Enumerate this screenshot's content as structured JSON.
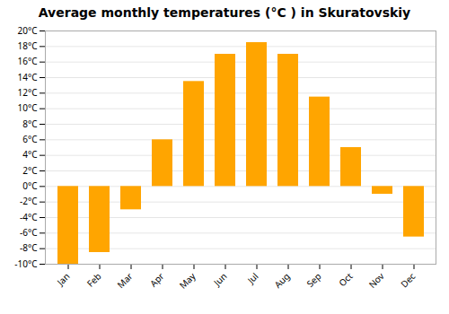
{
  "chart_data": {
    "type": "bar",
    "title": "Average monthly temperatures (°C ) in Skuratovskiy",
    "categories": [
      "Jan",
      "Feb",
      "Mar",
      "Apr",
      "May",
      "Jun",
      "Jul",
      "Aug",
      "Sep",
      "Oct",
      "Nov",
      "Dec"
    ],
    "values": [
      -10,
      -8.5,
      -3,
      6,
      13.5,
      17,
      18.5,
      17,
      11.5,
      5,
      -1,
      -6.5
    ],
    "color": "#FFA500",
    "ylim": [
      -10,
      20
    ],
    "yticks": [
      {
        "value": -10,
        "label": "-10°C"
      },
      {
        "value": -8,
        "label": "-8°C"
      },
      {
        "value": -6,
        "label": "-6°C"
      },
      {
        "value": -4,
        "label": "-4°C"
      },
      {
        "value": -2,
        "label": "-2°C"
      },
      {
        "value": 0,
        "label": "0°C"
      },
      {
        "value": 2,
        "label": "2°C"
      },
      {
        "value": 4,
        "label": "4°C"
      },
      {
        "value": 6,
        "label": "6°C"
      },
      {
        "value": 8,
        "label": "8°C"
      },
      {
        "value": 10,
        "label": "10°C"
      },
      {
        "value": 12,
        "label": "12°C"
      },
      {
        "value": 14,
        "label": "14°C"
      },
      {
        "value": 16,
        "label": "16°C"
      },
      {
        "value": 18,
        "label": "18°C"
      },
      {
        "value": 20,
        "label": "20°C"
      }
    ],
    "grid": true
  }
}
